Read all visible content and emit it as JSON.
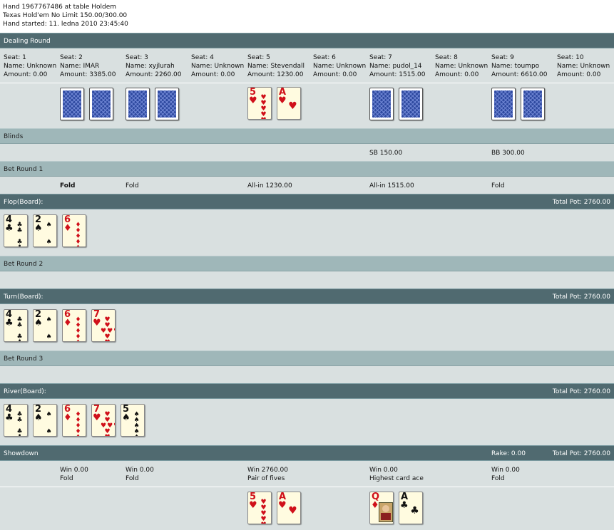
{
  "header": {
    "line1": "Hand 1967767486 at table Holdem",
    "line2": "Texas Hold'em No Limit 150.00/300.00",
    "line3": "Hand started: 11. ledna 2010 23:45:40"
  },
  "sections": {
    "dealing": "Dealing Round",
    "blinds": "Blinds",
    "bet1": "Bet Round 1",
    "flop": "Flop(Board):",
    "bet2": "Bet Round 2",
    "turn": "Turn(Board):",
    "bet3": "Bet Round 3",
    "river": "River(Board):",
    "showdown": "Showdown"
  },
  "pot": {
    "flop": "Total Pot: 2760.00",
    "turn": "Total Pot: 2760.00",
    "river": "Total Pot: 2760.00",
    "showdown": "Total Pot: 2760.00",
    "rake": "Rake: 0.00"
  },
  "seats": [
    {
      "seat": "Seat: 1",
      "name": "Name: Unknown",
      "amount": "Amount: 0.00"
    },
    {
      "seat": "Seat: 2",
      "name": "Name: IMAR",
      "amount": "Amount: 3385.00"
    },
    {
      "seat": "Seat: 3",
      "name": "Name: xyjlurah",
      "amount": "Amount: 2260.00"
    },
    {
      "seat": "Seat: 4",
      "name": "Name: Unknown",
      "amount": "Amount: 0.00"
    },
    {
      "seat": "Seat: 5",
      "name": "Name: Stevendall",
      "amount": "Amount: 1230.00"
    },
    {
      "seat": "Seat: 6",
      "name": "Name: Unknown",
      "amount": "Amount: 0.00"
    },
    {
      "seat": "Seat: 7",
      "name": "Name: pudol_14",
      "amount": "Amount: 1515.00"
    },
    {
      "seat": "Seat: 8",
      "name": "Name: Unknown",
      "amount": "Amount: 0.00"
    },
    {
      "seat": "Seat: 9",
      "name": "Name: toumpo",
      "amount": "Amount: 6610.00"
    },
    {
      "seat": "Seat: 10",
      "name": "Name: Unknown",
      "amount": "Amount: 0.00"
    }
  ],
  "blinds": {
    "sb": "SB 150.00",
    "bb": "BB 300.00"
  },
  "bet1": {
    "s2": "Fold",
    "s3": "Fold",
    "s5": "All-in 1230.00",
    "s7": "All-in 1515.00",
    "s9": "Fold"
  },
  "cards": {
    "r5": "5",
    "rA": "A",
    "r4": "4",
    "r2": "2",
    "r6": "6",
    "r7": "7",
    "rQ": "Q",
    "heart": "♥",
    "diamond": "♦",
    "club": "♣",
    "spade": "♠"
  },
  "showdown": {
    "s2": {
      "win": "Win 0.00",
      "hand": "Fold"
    },
    "s3": {
      "win": "Win 0.00",
      "hand": "Fold"
    },
    "s5": {
      "win": "Win 2760.00",
      "hand": "Pair of fives"
    },
    "s7": {
      "win": "Win 0.00",
      "hand": "Highest card ace"
    },
    "s9": {
      "win": "Win 0.00",
      "hand": "Fold"
    }
  }
}
